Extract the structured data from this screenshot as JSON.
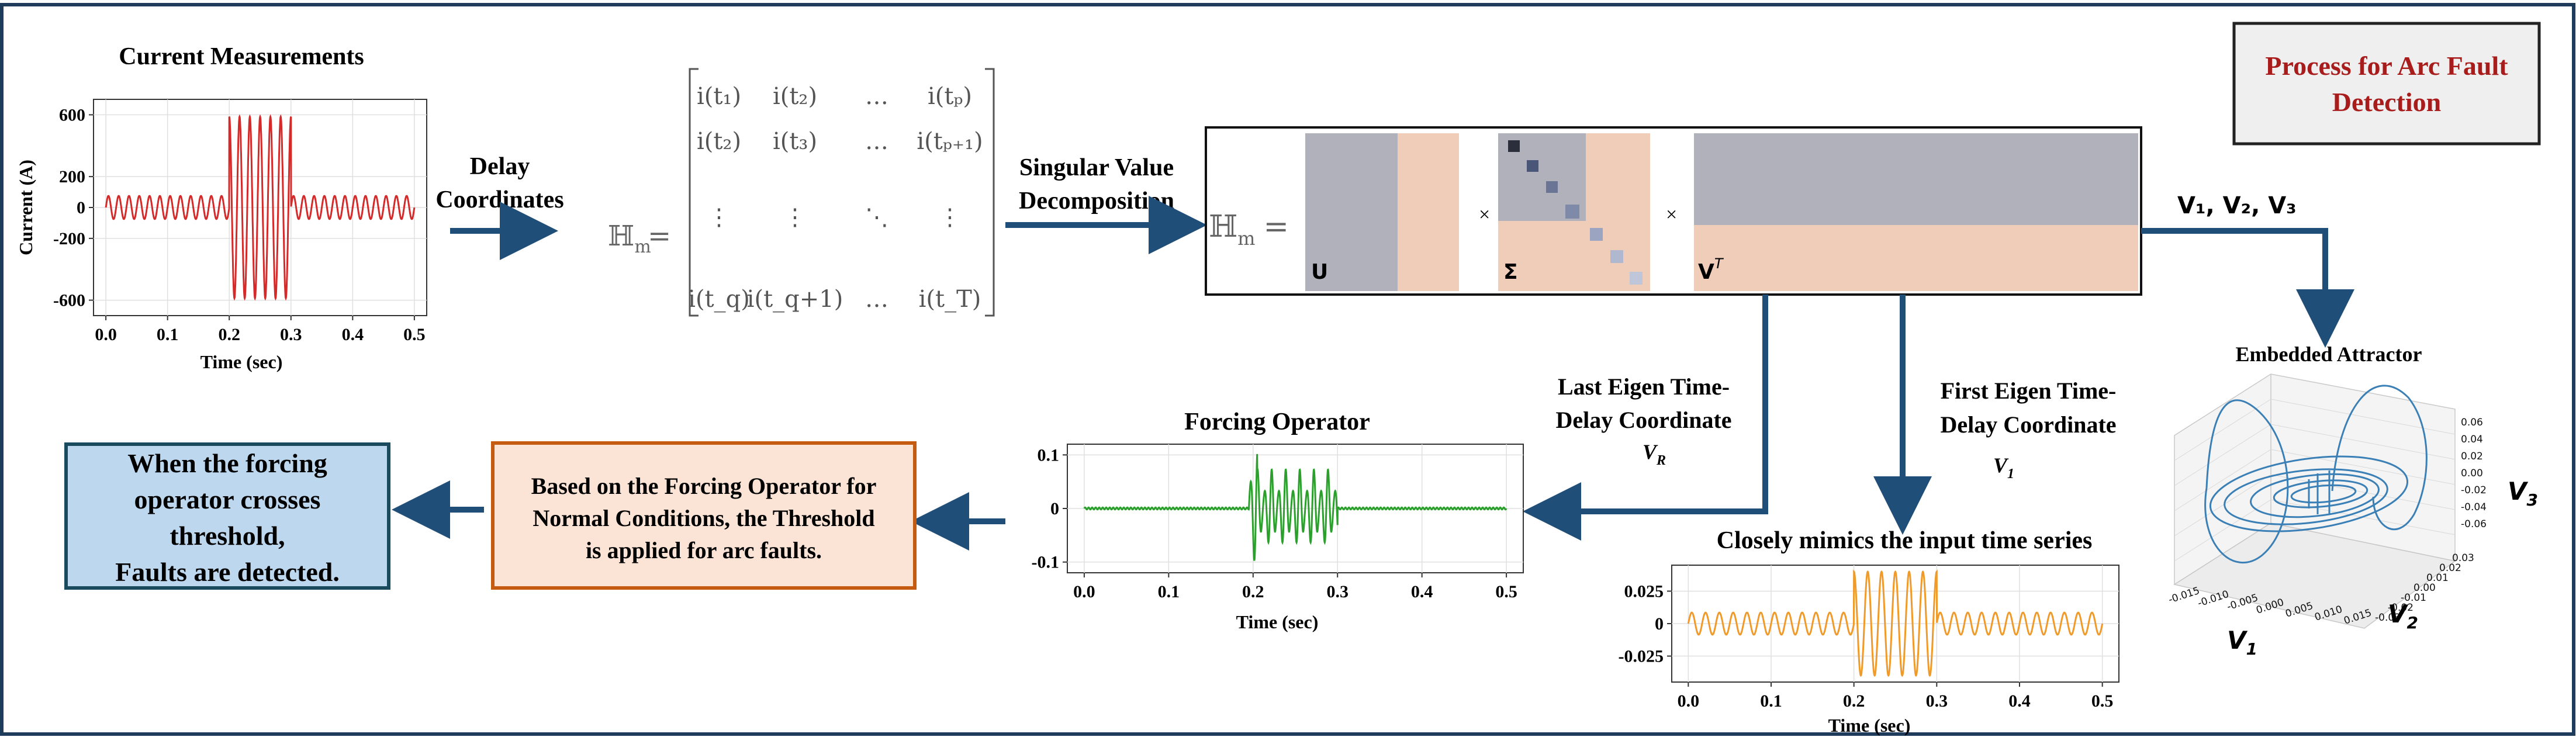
{
  "title": {
    "line1": "Process for Arc Fault",
    "line2": "Detection"
  },
  "current_chart": {
    "title": "Current Measurements",
    "ylabel": "Current (A)",
    "xlabel": "Time (sec)",
    "xticks": [
      "0.0",
      "0.1",
      "0.2",
      "0.3",
      "0.4",
      "0.5"
    ],
    "yticks": [
      "600",
      "200",
      "0",
      "-200",
      "-600"
    ]
  },
  "labels": {
    "delay_1": "Delay",
    "delay_2": "Coordinates",
    "svd_1": "Singular Value",
    "svd_2": "Decomposition",
    "v123": "V₁, V₂, V₃",
    "embedded": "Embedded Attractor",
    "last_eigen_1": "Last Eigen Time-",
    "last_eigen_2": "Delay Coordinate",
    "last_eigen_sym": "V",
    "last_eigen_sub": "R",
    "first_eigen_1": "First Eigen Time-",
    "first_eigen_2": "Delay Coordinate",
    "first_eigen_sym": "V",
    "first_eigen_sub": "1"
  },
  "hankel": {
    "lhs": "ℍ",
    "lhs_sub": "m",
    "rows": [
      [
        "i(t₁)",
        "i(t₂)",
        "…",
        "i(tₚ)"
      ],
      [
        "i(t₂)",
        "i(t₃)",
        "…",
        "i(tₚ₊₁)"
      ],
      [
        "⋮",
        "⋮",
        "⋱",
        "⋮"
      ],
      [
        "i(t_q)",
        "i(t_q+1)",
        "…",
        "i(t_T)"
      ]
    ]
  },
  "svd": {
    "lhs": "ℍ",
    "lhs_sub": "m",
    "U": "U",
    "Sigma": "Σ",
    "V": "V",
    "V_sup": "T",
    "times": "×"
  },
  "forcing_chart": {
    "title": "Forcing Operator",
    "xlabel": "Time (sec)",
    "xticks": [
      "0.0",
      "0.1",
      "0.2",
      "0.3",
      "0.4",
      "0.5"
    ],
    "yticks": [
      "0.1",
      "0",
      "-0.1"
    ]
  },
  "mimic_chart": {
    "title": "Closely mimics the input time series",
    "xlabel": "Time (sec)",
    "xticks": [
      "0.0",
      "0.1",
      "0.2",
      "0.3",
      "0.4",
      "0.5"
    ],
    "yticks": [
      "0.025",
      "0",
      "-0.025"
    ]
  },
  "attractor": {
    "zticks": [
      "0.06",
      "0.04",
      "0.02",
      "0.00",
      "-0.02",
      "-0.04",
      "-0.06"
    ],
    "yticks": [
      "0.03",
      "0.02",
      "0.01",
      "0.00",
      "-0.01",
      "-0.02",
      "-0.03"
    ],
    "xticks": [
      "-0.015",
      "-0.010",
      "-0.005",
      "0.000",
      "0.005",
      "0.010",
      "0.015"
    ],
    "v1": "V",
    "v1_sub": "1",
    "v2": "V",
    "v2_sub": "2",
    "v3": "V",
    "v3_sub": "3"
  },
  "threshold_box": {
    "line1": "Based on the Forcing Operator for",
    "line2": "Normal Conditions, the Threshold",
    "line3": "is applied for arc faults."
  },
  "detect_box": {
    "line1": "When the forcing",
    "line2": "operator crosses",
    "line3": "threshold,",
    "line4": "Faults are detected."
  },
  "colors": {
    "navy": "#1f4e79",
    "red_signal": "#d42a2a",
    "green_signal": "#2ca02c",
    "orange_signal": "#f09a2a",
    "title_red": "#a81c1c",
    "blue_box": "#bdd7ee",
    "peach_box": "#fbe3d6",
    "peach_border": "#c55a11",
    "attractor": "#3a7fb5"
  }
}
